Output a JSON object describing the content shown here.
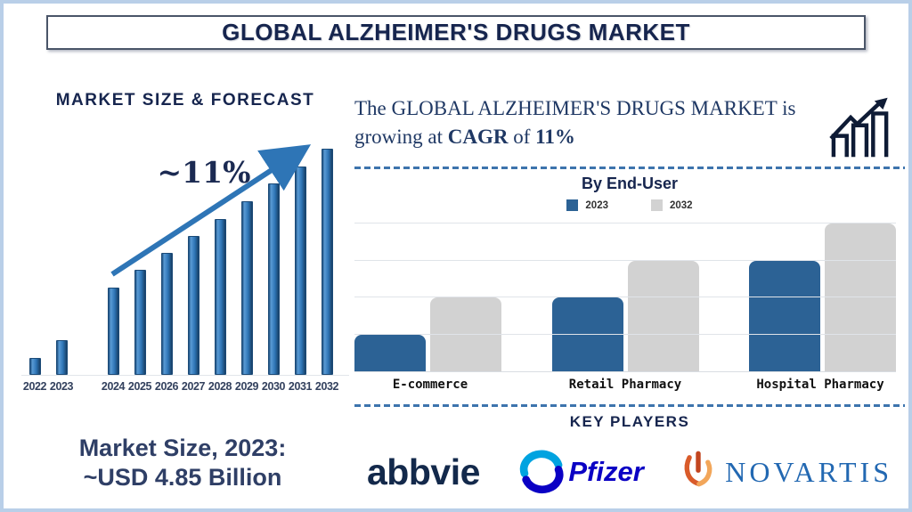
{
  "title_banner": {
    "text": "GLOBAL ALZHEIMER'S DRUGS MARKET"
  },
  "left": {
    "heading": "MARKET SIZE & FORECAST",
    "growth_annotation": "~11%",
    "market_size_line1": "Market Size, 2023:",
    "market_size_line2": "~USD 4.85 Billion"
  },
  "right": {
    "cagr_statement": {
      "part1": "The GLOBAL ALZHEIMER'S DRUGS MARKET is growing at ",
      "bold1": "CAGR",
      "part2": " of ",
      "bold2": "11%"
    },
    "end_user_heading": "By End-User",
    "key_players_heading": "KEY PLAYERS",
    "players": [
      {
        "name": "abbvie"
      },
      {
        "name": "Pfizer"
      },
      {
        "name": "NOVARTIS"
      }
    ]
  },
  "colors": {
    "navy_text": "#16254e",
    "steel_blue_accent": "#2e75b6",
    "forecast_bar_blue": "#2e75b6",
    "end_user_blue": "#2c6295",
    "end_user_gray": "#d2d2d2",
    "frame_border": "#b9cfe8",
    "pfizer_blue": "#0a00c4",
    "novartis_blue": "#2268b2",
    "novartis_flame_orange": "#e4572e"
  },
  "chart_data": [
    {
      "type": "bar",
      "title": "MARKET SIZE & FORECAST",
      "categories": [
        "2022",
        "2023",
        "2024",
        "2025",
        "2026",
        "2027",
        "2028",
        "2029",
        "2030",
        "2031",
        "2032"
      ],
      "values": [
        19,
        39,
        98,
        118,
        137,
        156,
        175,
        195,
        215,
        234,
        254
      ],
      "values_note": "relative bar heights, no y-axis shown",
      "known_point": "2023 market size ~USD 4.85 Billion",
      "annotation": "~11%",
      "xlabel": "",
      "ylabel": "",
      "grid": false,
      "legend": false,
      "bar_color": "#2e75b6"
    },
    {
      "type": "bar",
      "title": "By End-User",
      "categories": [
        "E-commerce",
        "Retail Pharmacy",
        "Hospital Pharmacy"
      ],
      "series": [
        {
          "name": "2023",
          "color": "#2c6295",
          "values": [
            1,
            2,
            3
          ]
        },
        {
          "name": "2032",
          "color": "#d2d2d2",
          "values": [
            2,
            3,
            4
          ]
        }
      ],
      "values_note": "relative units read from gridlines, no y-axis labels shown",
      "xlabel": "",
      "ylabel": "",
      "ylim": [
        0,
        4.1
      ],
      "grid": true,
      "legend_position": "top"
    }
  ]
}
